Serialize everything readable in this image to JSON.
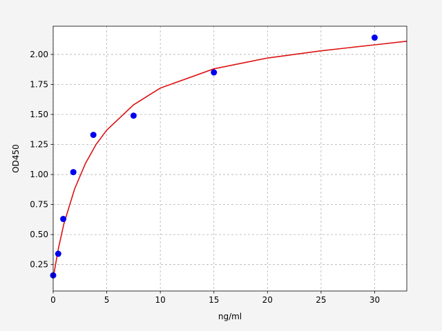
{
  "chart_data": {
    "type": "scatter",
    "xlabel": "ng/ml",
    "ylabel": "OD450",
    "xlim": [
      0,
      33
    ],
    "ylim": [
      0.03,
      2.235
    ],
    "xticks": [
      0,
      5,
      10,
      15,
      20,
      25,
      30
    ],
    "yticks": [
      0.25,
      {
        "value": 0.5,
        "label": "0.50"
      },
      0.75,
      {
        "value": 1,
        "label": "1.00"
      },
      1.25,
      {
        "value": 1.5,
        "label": "1.50"
      },
      1.75,
      {
        "value": 2,
        "label": "2.00"
      }
    ],
    "grid": true,
    "series": [
      {
        "type": "line",
        "color": "#dd1111",
        "x": [
          0,
          0.5,
          1,
          2,
          3,
          4,
          5,
          7.5,
          10,
          15,
          20,
          25,
          30,
          33
        ],
        "values": [
          0.14,
          0.39,
          0.59,
          0.88,
          1.09,
          1.25,
          1.37,
          1.58,
          1.72,
          1.88,
          1.97,
          2.03,
          2.08,
          2.11
        ]
      },
      {
        "type": "scatter",
        "color": "#0000ee",
        "x": [
          0,
          0.47,
          0.94,
          1.88,
          3.75,
          7.5,
          15,
          30
        ],
        "values": [
          0.16,
          0.34,
          0.63,
          1.02,
          1.33,
          1.49,
          1.85,
          2.14
        ]
      }
    ]
  }
}
